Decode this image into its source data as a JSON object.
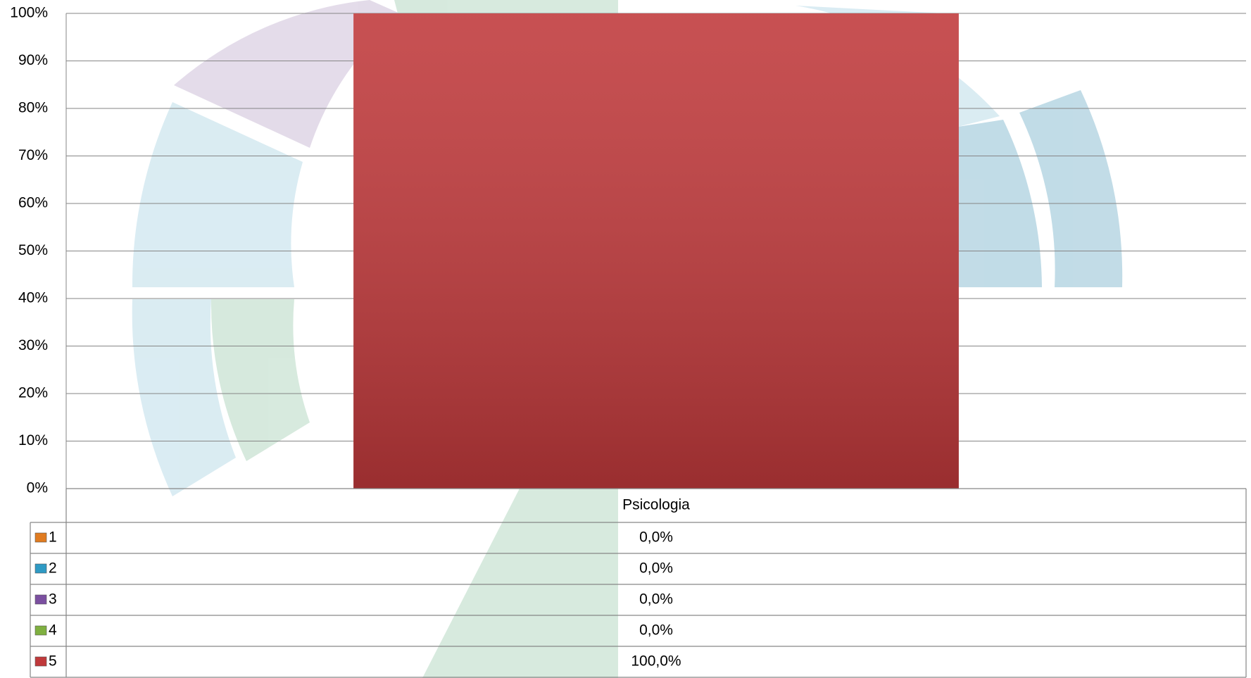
{
  "chart_data": {
    "type": "bar",
    "stacked": true,
    "categories": [
      "Psicologia"
    ],
    "series": [
      {
        "name": "1",
        "color": "#e07b20",
        "values": [
          0
        ],
        "value_labels": [
          "0,0%"
        ]
      },
      {
        "name": "2",
        "color": "#2e9ac4",
        "values": [
          0
        ],
        "value_labels": [
          "0,0%"
        ]
      },
      {
        "name": "3",
        "color": "#7b4fa0",
        "values": [
          0
        ],
        "value_labels": [
          "0,0%"
        ]
      },
      {
        "name": "4",
        "color": "#7fb040",
        "values": [
          0
        ],
        "value_labels": [
          "0,0%"
        ]
      },
      {
        "name": "5",
        "color": "#c0393b",
        "values": [
          100
        ],
        "value_labels": [
          "100,0%"
        ]
      }
    ],
    "ylim": [
      0,
      100
    ],
    "yticks": [
      {
        "value": 0,
        "label": "0%"
      },
      {
        "value": 10,
        "label": "10%"
      },
      {
        "value": 20,
        "label": "20%"
      },
      {
        "value": 30,
        "label": "30%"
      },
      {
        "value": 40,
        "label": "40%"
      },
      {
        "value": 50,
        "label": "50%"
      },
      {
        "value": 60,
        "label": "60%"
      },
      {
        "value": 70,
        "label": "70%"
      },
      {
        "value": 80,
        "label": "80%"
      },
      {
        "value": 90,
        "label": "90%"
      },
      {
        "value": 100,
        "label": "100%"
      }
    ],
    "grid": true
  }
}
